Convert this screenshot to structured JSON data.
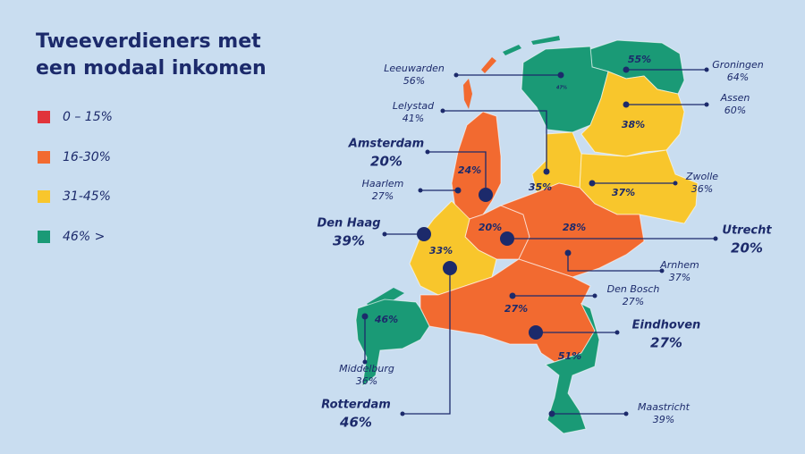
{
  "title": "Tweeverdieners met een modaal inkomen",
  "legend": [
    {
      "label": "0 – 15%",
      "color": "#e1343b"
    },
    {
      "label": "16-30%",
      "color": "#f26a30"
    },
    {
      "label": "31-45%",
      "color": "#f8c62c"
    },
    {
      "label": "46% >",
      "color": "#1a9a76"
    }
  ],
  "regions": [
    {
      "label": "55%",
      "color": "#1a9a76"
    },
    {
      "label": "47%",
      "color": "#1a9a76"
    },
    {
      "label": "38%",
      "color": "#f8c62c"
    },
    {
      "label": "37%",
      "color": "#f8c62c"
    },
    {
      "label": "35%",
      "color": "#f8c62c"
    },
    {
      "label": "24%",
      "color": "#f26a30"
    },
    {
      "label": "20%",
      "color": "#f26a30"
    },
    {
      "label": "28%",
      "color": "#f26a30"
    },
    {
      "label": "33%",
      "color": "#f8c62c"
    },
    {
      "label": "27%",
      "color": "#f26a30"
    },
    {
      "label": "51%",
      "color": "#1a9a76"
    },
    {
      "label": "46%",
      "color": "#1a9a76"
    }
  ],
  "cities": [
    {
      "name": "Leeuwarden",
      "value": "56%",
      "major": false
    },
    {
      "name": "Groningen",
      "value": "64%",
      "major": false
    },
    {
      "name": "Assen",
      "value": "60%",
      "major": false
    },
    {
      "name": "Lelystad",
      "value": "41%",
      "major": false
    },
    {
      "name": "Amsterdam",
      "value": "20%",
      "major": true
    },
    {
      "name": "Haarlem",
      "value": "27%",
      "major": false
    },
    {
      "name": "Zwolle",
      "value": "36%",
      "major": false
    },
    {
      "name": "Den Haag",
      "value": "39%",
      "major": true
    },
    {
      "name": "Utrecht",
      "value": "20%",
      "major": true
    },
    {
      "name": "Arnhem",
      "value": "37%",
      "major": false
    },
    {
      "name": "Den Bosch",
      "value": "27%",
      "major": false
    },
    {
      "name": "Middelburg",
      "value": "36%",
      "major": false
    },
    {
      "name": "Eindhoven",
      "value": "27%",
      "major": true
    },
    {
      "name": "Rotterdam",
      "value": "46%",
      "major": true
    },
    {
      "name": "Maastricht",
      "value": "39%",
      "major": false
    }
  ]
}
